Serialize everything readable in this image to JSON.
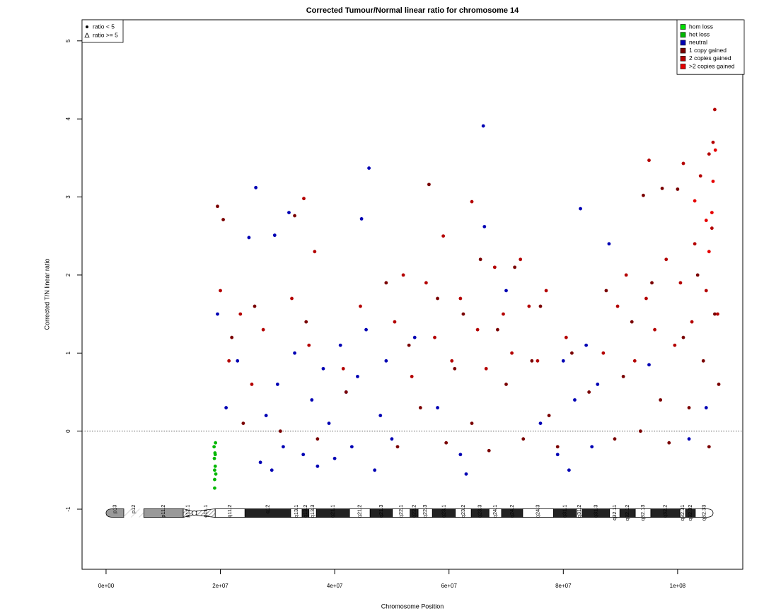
{
  "chart_data": {
    "type": "scatter",
    "title": "Corrected Tumour/Normal linear ratio for chromosome  14",
    "xlabel": "Chromosome Position",
    "ylabel": "Corrected T/N linear ratio",
    "xlim": [
      -4200000.0,
      111400000.0
    ],
    "ylim": [
      -1.77,
      5.27
    ],
    "xticks": [
      {
        "value": 0,
        "label": "0e+00"
      },
      {
        "value": 20000000.0,
        "label": "2e+07"
      },
      {
        "value": 40000000.0,
        "label": "4e+07"
      },
      {
        "value": 60000000.0,
        "label": "6e+07"
      },
      {
        "value": 80000000.0,
        "label": "8e+07"
      },
      {
        "value": 100000000.0,
        "label": "1e+08"
      }
    ],
    "yticks": [
      -1,
      0,
      1,
      2,
      3,
      4,
      5
    ],
    "hline": 0,
    "legend": "top-right",
    "point_legend": [
      {
        "label": "ratio < 5",
        "symbol": "circle"
      },
      {
        "label": "ratio >= 5",
        "symbol": "triangle"
      }
    ],
    "series": [
      {
        "name": "hom loss",
        "color": "#00e000",
        "x": [],
        "y": []
      },
      {
        "name": "het loss",
        "color": "#00b800",
        "x": [
          18900000.0,
          18950000.0,
          19000000.0,
          19000000.0,
          19050000.0,
          19100000.0,
          19150000.0,
          19200000.0,
          19000000.0,
          19100000.0
        ],
        "y": [
          -0.2,
          -0.35,
          -0.5,
          -0.62,
          -0.28,
          -0.45,
          -0.15,
          -0.55,
          -0.73,
          -0.3
        ]
      },
      {
        "name": "neutral",
        "color": "#0000b4",
        "x": [
          19500000.0,
          21000000.0,
          23000000.0,
          25000000.0,
          26200000.0,
          27000000.0,
          28000000.0,
          29000000.0,
          29500000.0,
          30000000.0,
          31000000.0,
          32000000.0,
          33000000.0,
          34500000.0,
          36000000.0,
          37000000.0,
          38000000.0,
          39000000.0,
          40000000.0,
          41000000.0,
          42000000.0,
          43000000.0,
          44000000.0,
          44700000.0,
          45500000.0,
          46000000.0,
          47000000.0,
          48000000.0,
          49000000.0,
          50000000.0,
          54000000.0,
          58000000.0,
          62000000.0,
          63000000.0,
          66000000.0,
          66200000.0,
          70000000.0,
          76000000.0,
          79000000.0,
          80000000.0,
          81000000.0,
          82000000.0,
          83000000.0,
          84000000.0,
          85000000.0,
          86000000.0,
          88000000.0,
          95000000.0,
          102000000.0,
          105000000.0
        ],
        "y": [
          1.5,
          0.3,
          0.9,
          2.48,
          3.12,
          -0.4,
          0.2,
          -0.5,
          2.51,
          0.6,
          -0.2,
          2.8,
          1.0,
          -0.3,
          0.4,
          -0.45,
          0.8,
          0.1,
          -0.35,
          1.1,
          0.5,
          -0.2,
          0.7,
          2.72,
          1.3,
          3.37,
          -0.5,
          0.2,
          0.9,
          -0.1,
          1.2,
          0.3,
          -0.3,
          -0.55,
          3.91,
          2.62,
          1.8,
          0.1,
          -0.3,
          0.9,
          -0.5,
          0.4,
          2.85,
          1.1,
          -0.2,
          0.6,
          2.4,
          0.85,
          -0.1,
          0.3
        ]
      },
      {
        "name": "1 copy gained",
        "color": "#7a0000",
        "x": [
          19500000.0,
          20500000.0,
          22000000.0,
          24000000.0,
          26000000.0,
          30500000.0,
          33000000.0,
          35000000.0,
          37000000.0,
          42000000.0,
          49000000.0,
          51000000.0,
          53000000.0,
          55000000.0,
          56500000.0,
          58000000.0,
          59500000.0,
          61000000.0,
          62500000.0,
          64000000.0,
          65500000.0,
          67000000.0,
          68500000.0,
          70000000.0,
          71500000.0,
          73000000.0,
          74500000.0,
          76000000.0,
          77500000.0,
          79000000.0,
          81500000.0,
          84500000.0,
          87500000.0,
          89000000.0,
          90500000.0,
          92000000.0,
          93500000.0,
          94000000.0,
          95500000.0,
          97000000.0,
          97300000.0,
          98500000.0,
          100000000.0,
          101000000.0,
          102000000.0,
          103500000.0,
          104500000.0,
          105500000.0,
          106500000.0,
          107200000.0
        ],
        "y": [
          2.88,
          2.71,
          1.2,
          0.1,
          1.6,
          0.0,
          2.76,
          1.4,
          -0.1,
          0.5,
          1.9,
          -0.2,
          1.1,
          0.3,
          3.16,
          1.7,
          -0.15,
          0.8,
          1.5,
          0.1,
          2.2,
          -0.25,
          1.3,
          0.6,
          2.1,
          -0.1,
          0.9,
          1.6,
          0.2,
          -0.2,
          1.0,
          0.5,
          1.8,
          -0.1,
          0.7,
          1.4,
          0.0,
          3.02,
          1.9,
          0.4,
          3.11,
          -0.15,
          3.1,
          1.2,
          0.3,
          2.0,
          0.9,
          -0.2,
          1.5,
          0.6
        ]
      },
      {
        "name": "2 copies gained",
        "color": "#b40000",
        "x": [
          20000000.0,
          21500000.0,
          23500000.0,
          25500000.0,
          27500000.0,
          32500000.0,
          34600000.0,
          35500000.0,
          36500000.0,
          41500000.0,
          44500000.0,
          50500000.0,
          52000000.0,
          53500000.0,
          56000000.0,
          57500000.0,
          59000000.0,
          60500000.0,
          62000000.0,
          64000000.0,
          65000000.0,
          66500000.0,
          68000000.0,
          69500000.0,
          71000000.0,
          72500000.0,
          74000000.0,
          75500000.0,
          77000000.0,
          80500000.0,
          87000000.0,
          89500000.0,
          91000000.0,
          92500000.0,
          94500000.0,
          95000000.0,
          96000000.0,
          98000000.0,
          99500000.0,
          100500000.0,
          101000000.0,
          102500000.0,
          103000000.0,
          104000000.0,
          105000000.0,
          105500000.0,
          106000000.0,
          106200000.0,
          106500000.0,
          107000000.0
        ],
        "y": [
          1.8,
          0.9,
          1.5,
          0.6,
          1.3,
          1.7,
          2.98,
          1.1,
          2.3,
          0.8,
          1.6,
          1.4,
          2.0,
          0.7,
          1.9,
          1.2,
          2.5,
          0.9,
          1.7,
          2.94,
          1.3,
          0.8,
          2.1,
          1.5,
          1.0,
          2.2,
          1.6,
          0.9,
          1.8,
          1.2,
          1.0,
          1.6,
          2.0,
          0.9,
          1.7,
          3.47,
          1.3,
          2.2,
          1.1,
          1.9,
          3.43,
          1.4,
          2.4,
          3.27,
          1.8,
          3.55,
          2.6,
          3.7,
          4.12,
          1.5
        ]
      },
      {
        "name": ">2 copies gained",
        "color": "#e60000",
        "x": [
          103000000.0,
          105000000.0,
          105500000.0,
          106000000.0,
          106200000.0,
          106600000.0
        ],
        "y": [
          2.95,
          2.7,
          2.3,
          2.8,
          3.2,
          3.6
        ]
      }
    ],
    "ideogram": {
      "y": -1.05,
      "bands": [
        {
          "label": "p13",
          "start": 0,
          "end": 3100000.0,
          "fill": "#999999"
        },
        {
          "label": "p12",
          "start": 3100000.0,
          "end": 6600000.0,
          "fill": "stalk"
        },
        {
          "label": "p11.2",
          "start": 6600000.0,
          "end": 13500000.0,
          "fill": "#999999"
        },
        {
          "label": "p11.1",
          "start": 13500000.0,
          "end": 15100000.0,
          "fill": "acen"
        },
        {
          "label": "q11.1",
          "start": 15800000.0,
          "end": 19100000.0,
          "fill": "acen"
        },
        {
          "label": "q11.2",
          "start": 19100000.0,
          "end": 24300000.0,
          "fill": "#ffffff"
        },
        {
          "label": "q12",
          "start": 24300000.0,
          "end": 32300000.0,
          "fill": "#222222"
        },
        {
          "label": "q13.1",
          "start": 32300000.0,
          "end": 34300000.0,
          "fill": "#ffffff"
        },
        {
          "label": "q13.2",
          "start": 34300000.0,
          "end": 35500000.0,
          "fill": "#222222"
        },
        {
          "label": "q13.3",
          "start": 35500000.0,
          "end": 36800000.0,
          "fill": "#ffffff"
        },
        {
          "label": "q21.1",
          "start": 36800000.0,
          "end": 42600000.0,
          "fill": "#222222"
        },
        {
          "label": "q21.2",
          "start": 42600000.0,
          "end": 46200000.0,
          "fill": "#ffffff"
        },
        {
          "label": "q21.3",
          "start": 46200000.0,
          "end": 50100000.0,
          "fill": "#222222"
        },
        {
          "label": "q22.1",
          "start": 50100000.0,
          "end": 53200000.0,
          "fill": "#ffffff"
        },
        {
          "label": "q22.2",
          "start": 53200000.0,
          "end": 54600000.0,
          "fill": "#222222"
        },
        {
          "label": "q22.3",
          "start": 54600000.0,
          "end": 57100000.0,
          "fill": "#ffffff"
        },
        {
          "label": "q23.1",
          "start": 57100000.0,
          "end": 61100000.0,
          "fill": "#222222"
        },
        {
          "label": "q23.2",
          "start": 61100000.0,
          "end": 63900000.0,
          "fill": "#ffffff"
        },
        {
          "label": "q23.3",
          "start": 63900000.0,
          "end": 67000000.0,
          "fill": "#222222"
        },
        {
          "label": "q24.1",
          "start": 67000000.0,
          "end": 69200000.0,
          "fill": "#ffffff"
        },
        {
          "label": "q24.2",
          "start": 69200000.0,
          "end": 72900000.0,
          "fill": "#222222"
        },
        {
          "label": "q24.3",
          "start": 72900000.0,
          "end": 78300000.0,
          "fill": "#ffffff"
        },
        {
          "label": "q31.1",
          "start": 78300000.0,
          "end": 82300000.0,
          "fill": "#222222"
        },
        {
          "label": "q31.2",
          "start": 82300000.0,
          "end": 83300000.0,
          "fill": "#ffffff"
        },
        {
          "label": "q31.3",
          "start": 83300000.0,
          "end": 88100000.0,
          "fill": "#222222"
        },
        {
          "label": "q32.11",
          "start": 88100000.0,
          "end": 89900000.0,
          "fill": "#ffffff"
        },
        {
          "label": "q32.12",
          "start": 89900000.0,
          "end": 92600000.0,
          "fill": "#222222"
        },
        {
          "label": "q32.13",
          "start": 92600000.0,
          "end": 95300000.0,
          "fill": "#ffffff"
        },
        {
          "label": "q32.2",
          "start": 95300000.0,
          "end": 100400000.0,
          "fill": "#222222"
        },
        {
          "label": "q32.31",
          "start": 100400000.0,
          "end": 101400000.0,
          "fill": "#ffffff"
        },
        {
          "label": "q32.32",
          "start": 101400000.0,
          "end": 103100000.0,
          "fill": "#222222"
        },
        {
          "label": "q32.33",
          "start": 103100000.0,
          "end": 106200000.0,
          "fill": "#ffffff"
        }
      ]
    }
  }
}
